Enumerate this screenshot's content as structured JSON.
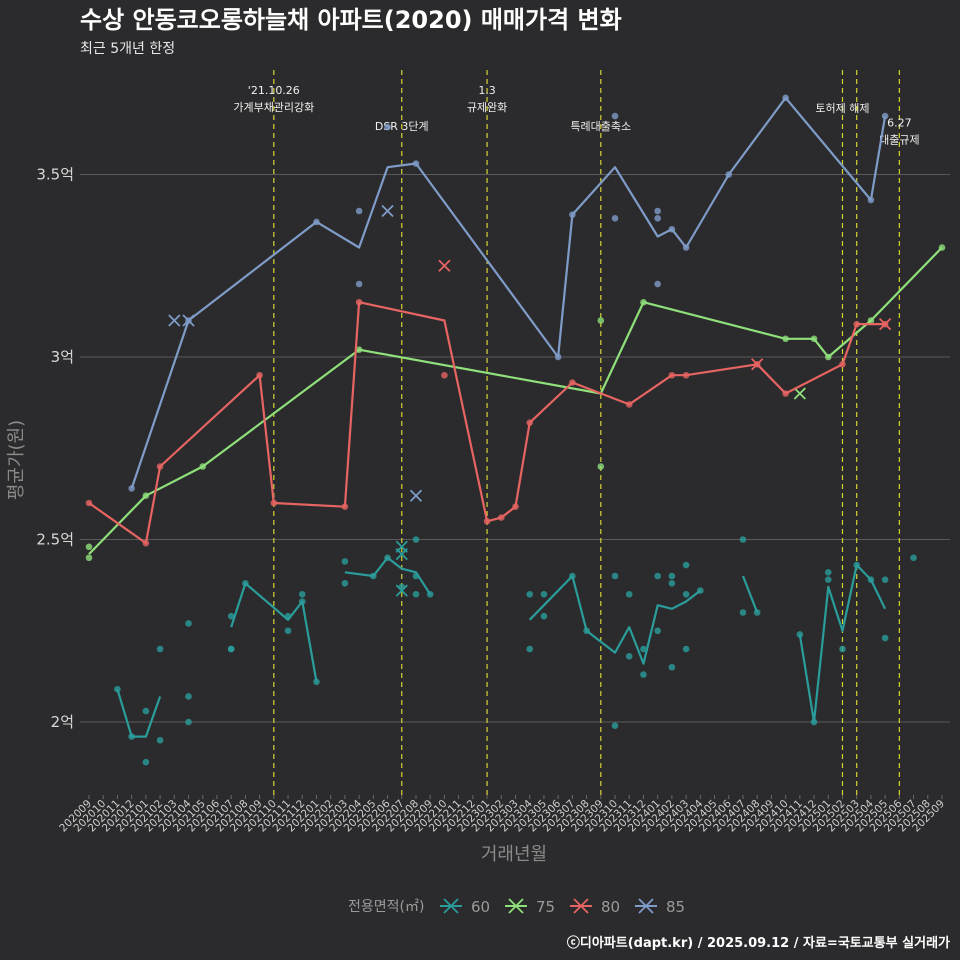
{
  "chart_data": {
    "type": "line",
    "title": "수상 안동코오롱하늘채 아파트(2020) 매매가격 변화",
    "subtitle": "최근 5개년 한정",
    "xlabel": "거래년월",
    "ylabel": "평균가(원)",
    "x_start": "2020-09",
    "x_end": "2025-09",
    "ylim": [
      1.8,
      3.8
    ],
    "y_ticks": [
      {
        "value": 2.0,
        "label": "2억"
      },
      {
        "value": 2.5,
        "label": "2.5억"
      },
      {
        "value": 3.0,
        "label": "3억"
      },
      {
        "value": 3.5,
        "label": "3.5억"
      }
    ],
    "legend": {
      "title": "전용면적(㎡)",
      "placement": "bottom"
    },
    "grid": true,
    "caption": "ⓒ디아파트(dapt.kr) / 2025.09.12 / 자료=국토교통부 실거래가",
    "events": [
      {
        "date": "2021-10",
        "lines": [
          "'21.10.26",
          "가계부채관리강화"
        ],
        "level": 0
      },
      {
        "date": "2022-07",
        "lines": [
          "DSR 3단계"
        ],
        "level": 2
      },
      {
        "date": "2023-01",
        "lines": [
          "1.3",
          "규제완화"
        ],
        "level": 0
      },
      {
        "date": "2023-09",
        "lines": [
          "특례대출축소"
        ],
        "level": 2
      },
      {
        "date": "2025-02",
        "lines": [
          "토허제 해제"
        ],
        "level": 1
      },
      {
        "date": "2025-03",
        "lines": [],
        "level": 0
      },
      {
        "date": "2025-06",
        "lines": [
          "6.27",
          "대출규제"
        ],
        "level": 1.8
      }
    ],
    "series": [
      {
        "name": "60",
        "color": "#2a9d9b",
        "line_segments": [
          [
            [
              "2020-11",
              2.09
            ],
            [
              "2020-12",
              1.96
            ],
            [
              "2021-01",
              1.96
            ],
            [
              "2021-02",
              2.07
            ]
          ],
          [
            [
              "2021-07",
              2.26
            ],
            [
              "2021-08",
              2.38
            ],
            [
              "2021-11",
              2.28
            ],
            [
              "2021-12",
              2.33
            ],
            [
              "2022-01",
              2.11
            ]
          ],
          [
            [
              "2022-03",
              2.41
            ],
            [
              "2022-05",
              2.4
            ],
            [
              "2022-06",
              2.45
            ],
            [
              "2022-07",
              2.42
            ],
            [
              "2022-08",
              2.41
            ],
            [
              "2022-09",
              2.35
            ]
          ],
          [
            [
              "2023-04",
              2.28
            ],
            [
              "2023-07",
              2.4
            ],
            [
              "2023-08",
              2.25
            ],
            [
              "2023-10",
              2.19
            ],
            [
              "2023-11",
              2.26
            ],
            [
              "2023-12",
              2.16
            ],
            [
              "2024-01",
              2.32
            ],
            [
              "2024-02",
              2.31
            ],
            [
              "2024-03",
              2.33
            ],
            [
              "2024-04",
              2.36
            ]
          ],
          [
            [
              "2024-07",
              2.4
            ],
            [
              "2024-08",
              2.3
            ]
          ],
          [
            [
              "2024-11",
              2.24
            ],
            [
              "2024-12",
              2.0
            ],
            [
              "2025-01",
              2.37
            ],
            [
              "2025-02",
              2.25
            ],
            [
              "2025-03",
              2.43
            ],
            [
              "2025-04",
              2.39
            ],
            [
              "2025-05",
              2.31
            ]
          ]
        ],
        "points": [
          [
            "2020-11",
            2.09
          ],
          [
            "2020-12",
            1.96
          ],
          [
            "2021-01",
            2.03
          ],
          [
            "2021-01",
            1.89
          ],
          [
            "2021-02",
            2.2
          ],
          [
            "2021-02",
            1.95
          ],
          [
            "2021-04",
            2.27
          ],
          [
            "2021-04",
            2.07
          ],
          [
            "2021-04",
            2.0
          ],
          [
            "2021-07",
            2.29
          ],
          [
            "2021-07",
            2.2
          ],
          [
            "2021-07",
            2.2
          ],
          [
            "2021-08",
            2.38
          ],
          [
            "2021-11",
            2.29
          ],
          [
            "2021-11",
            2.25
          ],
          [
            "2021-12",
            2.35
          ],
          [
            "2021-12",
            2.33
          ],
          [
            "2022-01",
            2.11
          ],
          [
            "2022-03",
            2.44
          ],
          [
            "2022-03",
            2.38
          ],
          [
            "2022-05",
            2.4
          ],
          [
            "2022-06",
            2.45
          ],
          [
            "2022-07",
            2.37
          ],
          [
            "2022-08",
            2.5
          ],
          [
            "2022-08",
            2.4
          ],
          [
            "2022-08",
            2.35
          ],
          [
            "2022-09",
            2.35
          ],
          [
            "2023-04",
            2.35
          ],
          [
            "2023-04",
            2.2
          ],
          [
            "2023-05",
            2.35
          ],
          [
            "2023-05",
            2.29
          ],
          [
            "2023-07",
            2.4
          ],
          [
            "2023-08",
            2.25
          ],
          [
            "2023-10",
            2.4
          ],
          [
            "2023-10",
            1.99
          ],
          [
            "2023-11",
            2.35
          ],
          [
            "2023-11",
            2.18
          ],
          [
            "2023-12",
            2.2
          ],
          [
            "2023-12",
            2.13
          ],
          [
            "2024-01",
            2.4
          ],
          [
            "2024-01",
            2.25
          ],
          [
            "2024-02",
            2.4
          ],
          [
            "2024-02",
            2.38
          ],
          [
            "2024-02",
            2.15
          ],
          [
            "2024-03",
            2.43
          ],
          [
            "2024-03",
            2.35
          ],
          [
            "2024-03",
            2.2
          ],
          [
            "2024-04",
            2.36
          ],
          [
            "2024-07",
            2.5
          ],
          [
            "2024-07",
            2.3
          ],
          [
            "2024-08",
            2.3
          ],
          [
            "2024-11",
            2.24
          ],
          [
            "2024-12",
            2.0
          ],
          [
            "2025-01",
            2.41
          ],
          [
            "2025-01",
            2.39
          ],
          [
            "2025-02",
            2.2
          ],
          [
            "2025-03",
            2.43
          ],
          [
            "2025-04",
            2.39
          ],
          [
            "2025-05",
            2.39
          ],
          [
            "2025-05",
            2.23
          ],
          [
            "2025-07",
            2.45
          ]
        ],
        "crosses": [
          [
            "2022-07",
            2.48
          ],
          [
            "2022-07",
            2.46
          ],
          [
            "2022-07",
            2.36
          ]
        ]
      },
      {
        "name": "75",
        "color": "#8fe07a",
        "line_segments": [
          [
            [
              "2020-09",
              2.46
            ],
            [
              "2021-01",
              2.62
            ],
            [
              "2021-05",
              2.7
            ],
            [
              "2022-04",
              3.02
            ],
            [
              "2023-09",
              2.9
            ],
            [
              "2023-12",
              3.15
            ],
            [
              "2024-10",
              3.05
            ],
            [
              "2024-12",
              3.05
            ],
            [
              "2025-01",
              3.0
            ],
            [
              "2025-04",
              3.1
            ],
            [
              "2025-09",
              3.3
            ]
          ]
        ],
        "points": [
          [
            "2020-09",
            2.48
          ],
          [
            "2020-09",
            2.45
          ],
          [
            "2021-01",
            2.62
          ],
          [
            "2021-05",
            2.7
          ],
          [
            "2022-04",
            3.02
          ],
          [
            "2023-09",
            3.1
          ],
          [
            "2023-09",
            2.7
          ],
          [
            "2023-12",
            3.15
          ],
          [
            "2024-10",
            3.05
          ],
          [
            "2024-12",
            3.05
          ],
          [
            "2025-01",
            3.0
          ],
          [
            "2025-04",
            3.1
          ],
          [
            "2025-09",
            3.3
          ]
        ],
        "crosses": [
          [
            "2024-11",
            2.9
          ]
        ]
      },
      {
        "name": "80",
        "color": "#e66461",
        "line_segments": [
          [
            [
              "2020-09",
              2.6
            ],
            [
              "2021-01",
              2.49
            ],
            [
              "2021-02",
              2.7
            ],
            [
              "2021-09",
              2.95
            ],
            [
              "2021-10",
              2.6
            ],
            [
              "2022-03",
              2.59
            ],
            [
              "2022-04",
              3.15
            ],
            [
              "2022-10",
              3.1
            ],
            [
              "2023-01",
              2.55
            ],
            [
              "2023-02",
              2.56
            ],
            [
              "2023-03",
              2.59
            ],
            [
              "2023-04",
              2.82
            ],
            [
              "2023-07",
              2.93
            ],
            [
              "2023-11",
              2.87
            ],
            [
              "2024-02",
              2.95
            ],
            [
              "2024-03",
              2.95
            ],
            [
              "2024-08",
              2.98
            ],
            [
              "2024-10",
              2.9
            ],
            [
              "2025-02",
              2.98
            ],
            [
              "2025-03",
              3.09
            ],
            [
              "2025-05",
              3.09
            ]
          ]
        ],
        "points": [
          [
            "2020-09",
            2.6
          ],
          [
            "2021-01",
            2.49
          ],
          [
            "2021-02",
            2.7
          ],
          [
            "2021-09",
            2.95
          ],
          [
            "2021-10",
            2.6
          ],
          [
            "2022-03",
            2.59
          ],
          [
            "2022-04",
            3.15
          ],
          [
            "2022-10",
            2.95
          ],
          [
            "2023-01",
            2.55
          ],
          [
            "2023-02",
            2.56
          ],
          [
            "2023-03",
            2.59
          ],
          [
            "2023-04",
            2.82
          ],
          [
            "2023-07",
            2.93
          ],
          [
            "2023-11",
            2.87
          ],
          [
            "2024-02",
            2.95
          ],
          [
            "2024-03",
            2.95
          ],
          [
            "2024-08",
            2.98
          ],
          [
            "2024-10",
            2.9
          ],
          [
            "2025-02",
            2.98
          ],
          [
            "2025-03",
            3.09
          ],
          [
            "2025-05",
            3.09
          ]
        ],
        "crosses": [
          [
            "2022-10",
            3.25
          ],
          [
            "2024-08",
            2.98
          ],
          [
            "2025-05",
            3.09
          ]
        ]
      },
      {
        "name": "85",
        "color": "#7f9cc8",
        "line_segments": [
          [
            [
              "2020-12",
              2.64
            ],
            [
              "2021-04",
              3.1
            ],
            [
              "2022-01",
              3.37
            ],
            [
              "2022-04",
              3.3
            ],
            [
              "2022-06",
              3.52
            ],
            [
              "2022-08",
              3.53
            ],
            [
              "2023-06",
              3.0
            ],
            [
              "2023-07",
              3.39
            ],
            [
              "2023-10",
              3.52
            ],
            [
              "2024-01",
              3.33
            ],
            [
              "2024-02",
              3.35
            ],
            [
              "2024-03",
              3.3
            ],
            [
              "2024-06",
              3.5
            ],
            [
              "2024-10",
              3.71
            ],
            [
              "2025-04",
              3.43
            ],
            [
              "2025-05",
              3.66
            ]
          ]
        ],
        "points": [
          [
            "2020-12",
            2.64
          ],
          [
            "2021-04",
            3.1
          ],
          [
            "2022-01",
            3.37
          ],
          [
            "2022-04",
            3.4
          ],
          [
            "2022-04",
            3.2
          ],
          [
            "2022-06",
            3.63
          ],
          [
            "2022-08",
            3.53
          ],
          [
            "2023-06",
            3.0
          ],
          [
            "2023-07",
            3.39
          ],
          [
            "2023-10",
            3.66
          ],
          [
            "2023-10",
            3.38
          ],
          [
            "2024-01",
            3.4
          ],
          [
            "2024-01",
            3.38
          ],
          [
            "2024-01",
            3.2
          ],
          [
            "2024-02",
            3.35
          ],
          [
            "2024-03",
            3.3
          ],
          [
            "2024-06",
            3.5
          ],
          [
            "2024-10",
            3.71
          ],
          [
            "2025-04",
            3.43
          ],
          [
            "2025-05",
            3.66
          ]
        ],
        "crosses": [
          [
            "2021-03",
            3.1
          ],
          [
            "2021-04",
            3.1
          ],
          [
            "2022-06",
            3.4
          ],
          [
            "2022-08",
            2.62
          ]
        ]
      }
    ]
  }
}
